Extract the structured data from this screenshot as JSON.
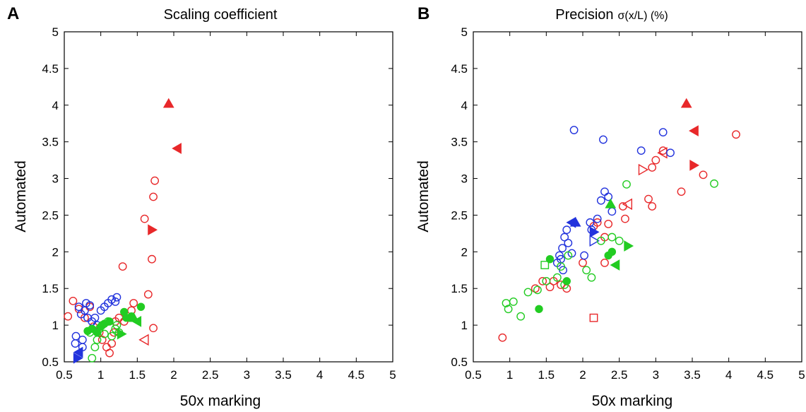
{
  "colors": {
    "red": "#e8282a",
    "blue": "#2233dd",
    "green": "#22cc22"
  },
  "chart_data": [
    {
      "panel_label": "A",
      "type": "scatter",
      "title": "Scaling coefficient",
      "title_extra": "",
      "xlabel": "50x marking",
      "ylabel": "Automated",
      "xlim": [
        0.5,
        5
      ],
      "ylim": [
        0.5,
        5
      ],
      "xticks": [
        "0.5",
        "1",
        "1.5",
        "2",
        "2.5",
        "3",
        "3.5",
        "4",
        "4.5",
        "5"
      ],
      "yticks": [
        "0.5",
        "1",
        "1.5",
        "2",
        "2.5",
        "3",
        "3.5",
        "4",
        "4.5",
        "5"
      ],
      "grid": false,
      "series": [
        {
          "color": "red",
          "marker": "circle-open",
          "points": [
            [
              0.55,
              1.12
            ],
            [
              0.62,
              1.33
            ],
            [
              0.7,
              1.22
            ],
            [
              0.78,
              1.1
            ],
            [
              0.85,
              1.25
            ],
            [
              0.9,
              0.98
            ],
            [
              0.98,
              0.9
            ],
            [
              1.02,
              0.8
            ],
            [
              1.08,
              0.7
            ],
            [
              1.12,
              0.62
            ],
            [
              1.15,
              0.75
            ],
            [
              1.18,
              0.9
            ],
            [
              1.2,
              1.05
            ],
            [
              1.25,
              1.1
            ],
            [
              1.3,
              1.8
            ],
            [
              1.32,
              1.05
            ],
            [
              1.42,
              1.2
            ],
            [
              1.45,
              1.3
            ],
            [
              1.6,
              2.45
            ],
            [
              1.65,
              1.42
            ],
            [
              1.7,
              1.9
            ],
            [
              1.72,
              0.96
            ],
            [
              1.72,
              2.75
            ],
            [
              1.74,
              2.97
            ]
          ]
        },
        {
          "color": "red",
          "marker": "triangle-up-filled",
          "points": [
            [
              1.93,
              4.02
            ]
          ]
        },
        {
          "color": "red",
          "marker": "triangle-left-filled",
          "points": [
            [
              2.05,
              3.41
            ]
          ]
        },
        {
          "color": "red",
          "marker": "triangle-right-filled",
          "points": [
            [
              1.7,
              2.3
            ]
          ]
        },
        {
          "color": "red",
          "marker": "triangle-left-open",
          "points": [
            [
              1.6,
              0.8
            ]
          ]
        },
        {
          "color": "blue",
          "marker": "circle-open",
          "points": [
            [
              0.65,
              0.75
            ],
            [
              0.66,
              0.85
            ],
            [
              0.7,
              1.25
            ],
            [
              0.73,
              1.15
            ],
            [
              0.75,
              0.8
            ],
            [
              0.75,
              0.7
            ],
            [
              0.78,
              1.2
            ],
            [
              0.8,
              1.3
            ],
            [
              0.82,
              1.1
            ],
            [
              0.85,
              1.27
            ],
            [
              0.88,
              1.05
            ],
            [
              0.92,
              1.1
            ],
            [
              0.95,
              1.0
            ],
            [
              1.0,
              1.2
            ],
            [
              1.05,
              1.25
            ],
            [
              1.1,
              1.3
            ],
            [
              1.15,
              1.35
            ],
            [
              1.2,
              1.32
            ],
            [
              1.22,
              1.38
            ]
          ]
        },
        {
          "color": "blue",
          "marker": "triangle-left-filled",
          "points": [
            [
              0.7,
              0.63
            ]
          ]
        },
        {
          "color": "blue",
          "marker": "triangle-right-filled",
          "points": [
            [
              0.68,
              0.55
            ]
          ]
        },
        {
          "color": "green",
          "marker": "circle-open",
          "points": [
            [
              0.85,
              0.9
            ],
            [
              0.88,
              0.55
            ],
            [
              0.92,
              0.7
            ],
            [
              0.95,
              0.8
            ],
            [
              0.98,
              0.95
            ],
            [
              1.02,
              1.0
            ],
            [
              1.05,
              0.88
            ],
            [
              1.1,
              1.05
            ],
            [
              1.15,
              0.85
            ],
            [
              1.2,
              0.95
            ],
            [
              1.22,
              1.0
            ],
            [
              1.25,
              0.9
            ]
          ]
        },
        {
          "color": "green",
          "marker": "circle-filled",
          "points": [
            [
              0.82,
              0.92
            ],
            [
              0.88,
              0.95
            ],
            [
              0.95,
              0.9
            ],
            [
              1.0,
              0.98
            ],
            [
              1.05,
              1.02
            ],
            [
              1.12,
              1.05
            ],
            [
              1.32,
              1.18
            ],
            [
              1.35,
              1.1
            ],
            [
              1.42,
              1.12
            ],
            [
              1.55,
              1.25
            ]
          ]
        },
        {
          "color": "green",
          "marker": "triangle-left-filled",
          "points": [
            [
              1.5,
              1.05
            ]
          ]
        },
        {
          "color": "green",
          "marker": "triangle-right-filled",
          "points": [
            [
              1.28,
              0.88
            ]
          ]
        },
        {
          "color": "green",
          "marker": "triangle-up-filled",
          "points": [
            [
              1.45,
              1.1
            ]
          ]
        }
      ]
    },
    {
      "panel_label": "B",
      "type": "scatter",
      "title": "Precision",
      "title_extra": "σ(x/L) (%)",
      "xlabel": "50x marking",
      "ylabel": "Automated",
      "xlim": [
        0.5,
        5
      ],
      "ylim": [
        0.5,
        5
      ],
      "xticks": [
        "0.5",
        "1",
        "1.5",
        "2",
        "2.5",
        "3",
        "3.5",
        "4",
        "4.5",
        "5"
      ],
      "yticks": [
        "0.5",
        "1",
        "1.5",
        "2",
        "2.5",
        "3",
        "3.5",
        "4",
        "4.5",
        "5"
      ],
      "grid": false,
      "series": [
        {
          "color": "red",
          "marker": "circle-open",
          "points": [
            [
              0.9,
              0.83
            ],
            [
              1.35,
              1.5
            ],
            [
              1.45,
              1.6
            ],
            [
              1.55,
              1.52
            ],
            [
              1.6,
              1.6
            ],
            [
              1.7,
              1.55
            ],
            [
              1.78,
              1.5
            ],
            [
              2.0,
              1.85
            ],
            [
              2.15,
              2.35
            ],
            [
              2.2,
              2.4
            ],
            [
              2.3,
              1.85
            ],
            [
              2.3,
              2.2
            ],
            [
              2.35,
              2.38
            ],
            [
              2.55,
              2.62
            ],
            [
              2.58,
              2.45
            ],
            [
              2.9,
              2.72
            ],
            [
              2.95,
              2.62
            ],
            [
              2.95,
              3.15
            ],
            [
              3.0,
              3.25
            ],
            [
              3.1,
              3.38
            ],
            [
              3.35,
              2.82
            ],
            [
              3.65,
              3.05
            ],
            [
              4.1,
              3.6
            ]
          ]
        },
        {
          "color": "red",
          "marker": "triangle-up-filled",
          "points": [
            [
              3.42,
              4.02
            ]
          ]
        },
        {
          "color": "red",
          "marker": "triangle-left-filled",
          "points": [
            [
              3.53,
              3.65
            ]
          ]
        },
        {
          "color": "red",
          "marker": "triangle-right-filled",
          "points": [
            [
              3.52,
              3.18
            ]
          ]
        },
        {
          "color": "red",
          "marker": "triangle-right-open",
          "points": [
            [
              2.82,
              3.12
            ]
          ]
        },
        {
          "color": "red",
          "marker": "triangle-left-open",
          "points": [
            [
              3.1,
              3.35
            ],
            [
              2.62,
              2.65
            ]
          ]
        },
        {
          "color": "red",
          "marker": "square-open",
          "points": [
            [
              2.15,
              1.1
            ]
          ]
        },
        {
          "color": "blue",
          "marker": "circle-open",
          "points": [
            [
              1.65,
              1.85
            ],
            [
              1.68,
              1.95
            ],
            [
              1.7,
              1.9
            ],
            [
              1.72,
              2.05
            ],
            [
              1.73,
              1.75
            ],
            [
              1.75,
              2.2
            ],
            [
              1.78,
              2.3
            ],
            [
              1.8,
              2.12
            ],
            [
              1.85,
              1.98
            ],
            [
              1.88,
              3.66
            ],
            [
              2.02,
              1.95
            ],
            [
              2.1,
              2.4
            ],
            [
              2.12,
              2.3
            ],
            [
              2.2,
              2.45
            ],
            [
              2.25,
              2.7
            ],
            [
              2.28,
              3.53
            ],
            [
              2.3,
              2.82
            ],
            [
              2.35,
              2.75
            ],
            [
              2.4,
              2.55
            ],
            [
              2.8,
              3.38
            ],
            [
              3.1,
              3.63
            ],
            [
              3.2,
              3.35
            ]
          ]
        },
        {
          "color": "blue",
          "marker": "triangle-left-filled",
          "points": [
            [
              1.85,
              2.4
            ]
          ]
        },
        {
          "color": "blue",
          "marker": "triangle-right-filled",
          "points": [
            [
              2.15,
              2.27
            ]
          ]
        },
        {
          "color": "blue",
          "marker": "triangle-up-filled",
          "points": [
            [
              1.9,
              2.4
            ]
          ]
        },
        {
          "color": "blue",
          "marker": "triangle-right-open",
          "points": [
            [
              2.15,
              2.15
            ]
          ]
        },
        {
          "color": "green",
          "marker": "circle-open",
          "points": [
            [
              0.95,
              1.3
            ],
            [
              0.98,
              1.22
            ],
            [
              1.05,
              1.32
            ],
            [
              1.15,
              1.12
            ],
            [
              1.25,
              1.45
            ],
            [
              1.38,
              1.48
            ],
            [
              1.5,
              1.6
            ],
            [
              1.65,
              1.65
            ],
            [
              1.7,
              1.8
            ],
            [
              1.75,
              1.55
            ],
            [
              1.8,
              1.95
            ],
            [
              2.05,
              1.75
            ],
            [
              2.12,
              1.65
            ],
            [
              2.25,
              2.15
            ],
            [
              2.4,
              2.2
            ],
            [
              2.5,
              2.15
            ],
            [
              2.6,
              2.92
            ],
            [
              3.8,
              2.93
            ]
          ]
        },
        {
          "color": "green",
          "marker": "circle-filled",
          "points": [
            [
              1.4,
              1.22
            ],
            [
              1.55,
              1.9
            ],
            [
              1.78,
              1.6
            ],
            [
              2.35,
              1.95
            ],
            [
              2.4,
              2.0
            ]
          ]
        },
        {
          "color": "green",
          "marker": "triangle-right-filled",
          "points": [
            [
              2.62,
              2.08
            ]
          ]
        },
        {
          "color": "green",
          "marker": "triangle-left-filled",
          "points": [
            [
              2.45,
              1.82
            ]
          ]
        },
        {
          "color": "green",
          "marker": "triangle-up-filled",
          "points": [
            [
              2.38,
              2.65
            ]
          ]
        },
        {
          "color": "green",
          "marker": "square-open",
          "points": [
            [
              1.48,
              1.82
            ]
          ]
        }
      ]
    }
  ]
}
